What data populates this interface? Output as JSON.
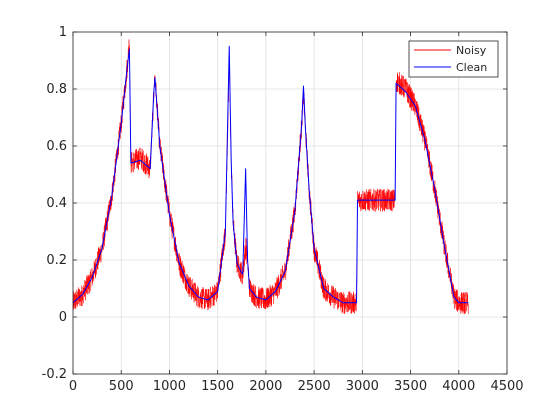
{
  "chart_data": {
    "type": "line",
    "title": "",
    "xlabel": "",
    "ylabel": "",
    "xlim": [
      0,
      4500
    ],
    "ylim": [
      -0.2,
      1
    ],
    "grid": true,
    "legend_location": "top-right",
    "x_ticks": [
      "0",
      "500",
      "1000",
      "1500",
      "2000",
      "2500",
      "3000",
      "3500",
      "4000",
      "4500"
    ],
    "y_ticks": [
      "-0.2",
      "0",
      "0.2",
      "0.4",
      "0.6",
      "0.8",
      "1"
    ],
    "noise_amplitude": 0.04,
    "series": [
      {
        "name": "Noisy",
        "color": "#ff0000",
        "style": "noisy",
        "x": [
          0,
          100,
          200,
          300,
          400,
          500,
          560,
          585,
          600,
          700,
          800,
          840,
          850,
          900,
          1000,
          1100,
          1200,
          1300,
          1400,
          1500,
          1580,
          1620,
          1640,
          1660,
          1700,
          1740,
          1760,
          1790,
          1810,
          1830,
          1900,
          2000,
          2100,
          2200,
          2300,
          2370,
          2390,
          2410,
          2450,
          2500,
          2600,
          2700,
          2800,
          2940,
          2950,
          3300,
          3340,
          3350,
          3450,
          3550,
          3650,
          3750,
          3850,
          3950,
          4000,
          4050,
          4100
        ],
        "y": [
          0.05,
          0.08,
          0.14,
          0.24,
          0.42,
          0.68,
          0.87,
          0.97,
          0.54,
          0.56,
          0.52,
          0.8,
          0.84,
          0.6,
          0.36,
          0.19,
          0.11,
          0.07,
          0.06,
          0.09,
          0.3,
          0.88,
          0.55,
          0.33,
          0.19,
          0.16,
          0.15,
          0.25,
          0.2,
          0.1,
          0.07,
          0.06,
          0.09,
          0.16,
          0.37,
          0.67,
          0.78,
          0.66,
          0.44,
          0.24,
          0.1,
          0.07,
          0.05,
          0.05,
          0.41,
          0.41,
          0.41,
          0.83,
          0.8,
          0.74,
          0.62,
          0.45,
          0.25,
          0.07,
          0.05,
          0.05,
          0.05
        ]
      },
      {
        "name": "Clean",
        "color": "#0000ff",
        "style": "line",
        "x": [
          0,
          100,
          200,
          300,
          400,
          500,
          560,
          585,
          600,
          700,
          800,
          840,
          850,
          900,
          1000,
          1100,
          1200,
          1300,
          1400,
          1500,
          1580,
          1620,
          1640,
          1660,
          1700,
          1740,
          1760,
          1790,
          1810,
          1830,
          1900,
          2000,
          2100,
          2200,
          2300,
          2370,
          2390,
          2410,
          2450,
          2500,
          2600,
          2700,
          2800,
          2940,
          2950,
          3300,
          3340,
          3350,
          3450,
          3550,
          3650,
          3750,
          3850,
          3950,
          4000,
          4050,
          4100
        ],
        "y": [
          0.05,
          0.08,
          0.14,
          0.24,
          0.42,
          0.68,
          0.87,
          0.94,
          0.54,
          0.55,
          0.52,
          0.8,
          0.84,
          0.6,
          0.36,
          0.19,
          0.11,
          0.07,
          0.06,
          0.09,
          0.3,
          0.95,
          0.55,
          0.33,
          0.19,
          0.16,
          0.15,
          0.52,
          0.2,
          0.1,
          0.07,
          0.06,
          0.09,
          0.16,
          0.37,
          0.67,
          0.81,
          0.66,
          0.44,
          0.24,
          0.1,
          0.07,
          0.05,
          0.05,
          0.41,
          0.41,
          0.41,
          0.82,
          0.79,
          0.74,
          0.62,
          0.45,
          0.25,
          0.07,
          0.05,
          0.05,
          0.05
        ]
      }
    ]
  }
}
